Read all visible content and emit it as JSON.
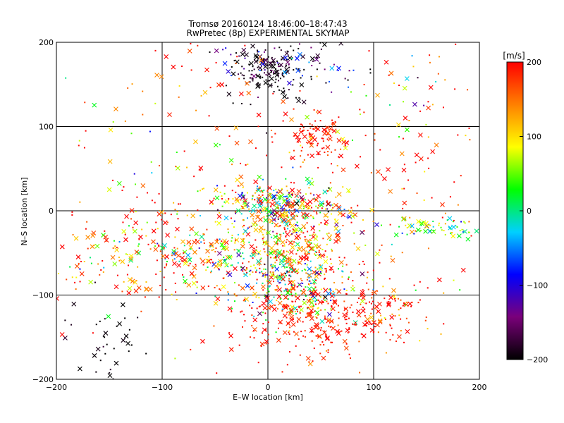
{
  "chart_data": {
    "type": "scatter",
    "title": "Tromsø 20160124 18:46:00–18:47:43",
    "subtitle": "RwPretec (8p) EXPERIMENTAL SKYMAP",
    "xlabel": "E–W location [km]",
    "ylabel": "N–S location [km]",
    "xlim": [
      -200,
      200
    ],
    "ylim": [
      -200,
      200
    ],
    "xticks": [
      -200,
      -100,
      0,
      100,
      200
    ],
    "yticks": [
      -200,
      -100,
      0,
      100,
      200
    ],
    "xtick_labels": [
      "−200",
      "−100",
      "0",
      "100",
      "200"
    ],
    "yticks_labels": [
      "−200",
      "−100",
      "0",
      "100",
      "200"
    ],
    "grid": true,
    "marker_types": [
      "cross",
      "dot"
    ],
    "colorbar": {
      "label": "[m/s]",
      "range": [
        -200,
        200
      ],
      "ticks": [
        200,
        100,
        0,
        -100,
        -200
      ],
      "tick_labels": [
        "200",
        "100",
        "0",
        "−100",
        "−200"
      ],
      "colors": [
        "#000000",
        "#7a007a",
        "#0000ff",
        "#00d0ff",
        "#00ff00",
        "#ffff00",
        "#ff8000",
        "#ff0000"
      ]
    },
    "clusters": [
      {
        "x": 5,
        "y": 165,
        "sx": 18,
        "sy": 18,
        "n": 160,
        "v": -195,
        "vs": 15
      },
      {
        "x": 20,
        "y": 180,
        "sx": 35,
        "sy": 18,
        "n": 80,
        "v": -150,
        "vs": 60
      },
      {
        "x": 45,
        "y": 90,
        "sx": 15,
        "sy": 15,
        "n": 90,
        "v": 190,
        "vs": 15
      },
      {
        "x": 15,
        "y": 5,
        "sx": 30,
        "sy": 15,
        "n": 300,
        "v": 60,
        "vs": 120
      },
      {
        "x": 20,
        "y": -35,
        "sx": 30,
        "sy": 25,
        "n": 250,
        "v": 160,
        "vs": 60
      },
      {
        "x": 20,
        "y": -85,
        "sx": 30,
        "sy": 20,
        "n": 250,
        "v": 30,
        "vs": 100
      },
      {
        "x": 40,
        "y": -125,
        "sx": 40,
        "sy": 25,
        "n": 280,
        "v": 190,
        "vs": 20
      },
      {
        "x": 110,
        "y": -120,
        "sx": 25,
        "sy": 20,
        "n": 90,
        "v": 170,
        "vs": 60
      },
      {
        "x": -35,
        "y": -50,
        "sx": 40,
        "sy": 18,
        "n": 120,
        "v": 20,
        "vs": 70
      },
      {
        "x": -90,
        "y": -60,
        "sx": 30,
        "sy": 25,
        "n": 100,
        "v": 180,
        "vs": 40
      },
      {
        "x": -160,
        "y": -60,
        "sx": 25,
        "sy": 25,
        "n": 60,
        "v": 150,
        "vs": 80
      },
      {
        "x": 155,
        "y": -20,
        "sx": 35,
        "sy": 6,
        "n": 80,
        "v": 30,
        "vs": 50
      },
      {
        "x": -150,
        "y": -160,
        "sx": 15,
        "sy": 25,
        "n": 40,
        "v": -195,
        "vs": 10
      },
      {
        "x": -60,
        "y": 140,
        "sx": 50,
        "sy": 40,
        "n": 40,
        "v": 180,
        "vs": 50
      },
      {
        "x": 140,
        "y": 140,
        "sx": 35,
        "sy": 30,
        "n": 40,
        "v": 100,
        "vs": 120
      },
      {
        "x": 80,
        "y": 20,
        "sx": 100,
        "sy": 80,
        "n": 220,
        "v": 170,
        "vs": 70
      },
      {
        "x": -100,
        "y": 0,
        "sx": 60,
        "sy": 60,
        "n": 120,
        "v": 150,
        "vs": 100
      }
    ]
  }
}
